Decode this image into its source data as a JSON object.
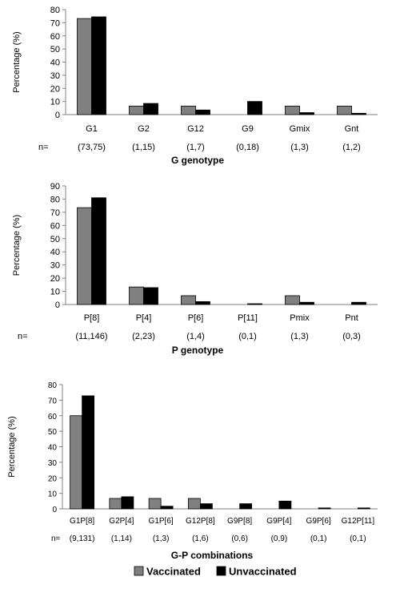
{
  "legend": [
    {
      "label": "Vaccinated",
      "color": "#808080"
    },
    {
      "label": "Unvaccinated",
      "color": "#000000"
    }
  ],
  "chart_data": [
    {
      "type": "bar",
      "ylabel": "Percentage (%)",
      "xlabel": "G genotype",
      "ylim": [
        0,
        80
      ],
      "yticks": [
        0,
        10,
        20,
        30,
        40,
        50,
        60,
        70,
        80
      ],
      "n_prefix": "n=",
      "categories": [
        "G1",
        "G2",
        "G12",
        "G9",
        "Gmix",
        "Gnt"
      ],
      "n_labels": [
        "(73,75)",
        "(1,15)",
        "(1,7)",
        "(0,18)",
        "(1,3)",
        "(1,2)"
      ],
      "series": [
        {
          "name": "Vaccinated",
          "values": [
            73.2,
            6.5,
            6.5,
            0,
            6.5,
            6.5
          ]
        },
        {
          "name": "Unvaccinated",
          "values": [
            74.5,
            8.5,
            3.5,
            10,
            1.5,
            1.0
          ]
        }
      ]
    },
    {
      "type": "bar",
      "ylabel": "Percentage (%)",
      "xlabel": "P genotype",
      "ylim": [
        0,
        90
      ],
      "yticks": [
        0,
        10,
        20,
        30,
        40,
        50,
        60,
        70,
        80,
        90
      ],
      "n_prefix": "n=",
      "categories": [
        "P[8]",
        "P[4]",
        "P[6]",
        "P[11]",
        "Pmix",
        "Pnt"
      ],
      "n_labels": [
        "(11,146)",
        "(2,23)",
        "(1,4)",
        "(0,1)",
        "(1,3)",
        "(0,3)"
      ],
      "series": [
        {
          "name": "Vaccinated",
          "values": [
            73.5,
            13.3,
            6.7,
            0,
            6.7,
            0
          ]
        },
        {
          "name": "Unvaccinated",
          "values": [
            81.0,
            12.8,
            2.2,
            0.6,
            1.7,
            1.7
          ]
        }
      ]
    },
    {
      "type": "bar",
      "ylabel": "Percentage (%)",
      "xlabel": "G-P combinations",
      "ylim": [
        0,
        80
      ],
      "yticks": [
        0,
        10,
        20,
        30,
        40,
        50,
        60,
        70,
        80
      ],
      "n_prefix": "n=",
      "categories": [
        "G1P[8]",
        "G2P[4]",
        "G1P[6]",
        "G12P[8]",
        "G9P[8]",
        "G9P[4]",
        "G9P[6]",
        "G12P[11]"
      ],
      "n_labels": [
        "(9,131)",
        "(1,14)",
        "(1,3)",
        "(1,6)",
        "(0,6)",
        "(0,9)",
        "(0,1)",
        "(0,1)"
      ],
      "series": [
        {
          "name": "Vaccinated",
          "values": [
            60.0,
            6.7,
            6.7,
            6.7,
            0,
            0,
            0,
            0
          ]
        },
        {
          "name": "Unvaccinated",
          "values": [
            72.8,
            7.8,
            1.7,
            3.3,
            3.3,
            5.0,
            0.6,
            0.6
          ]
        }
      ]
    }
  ]
}
